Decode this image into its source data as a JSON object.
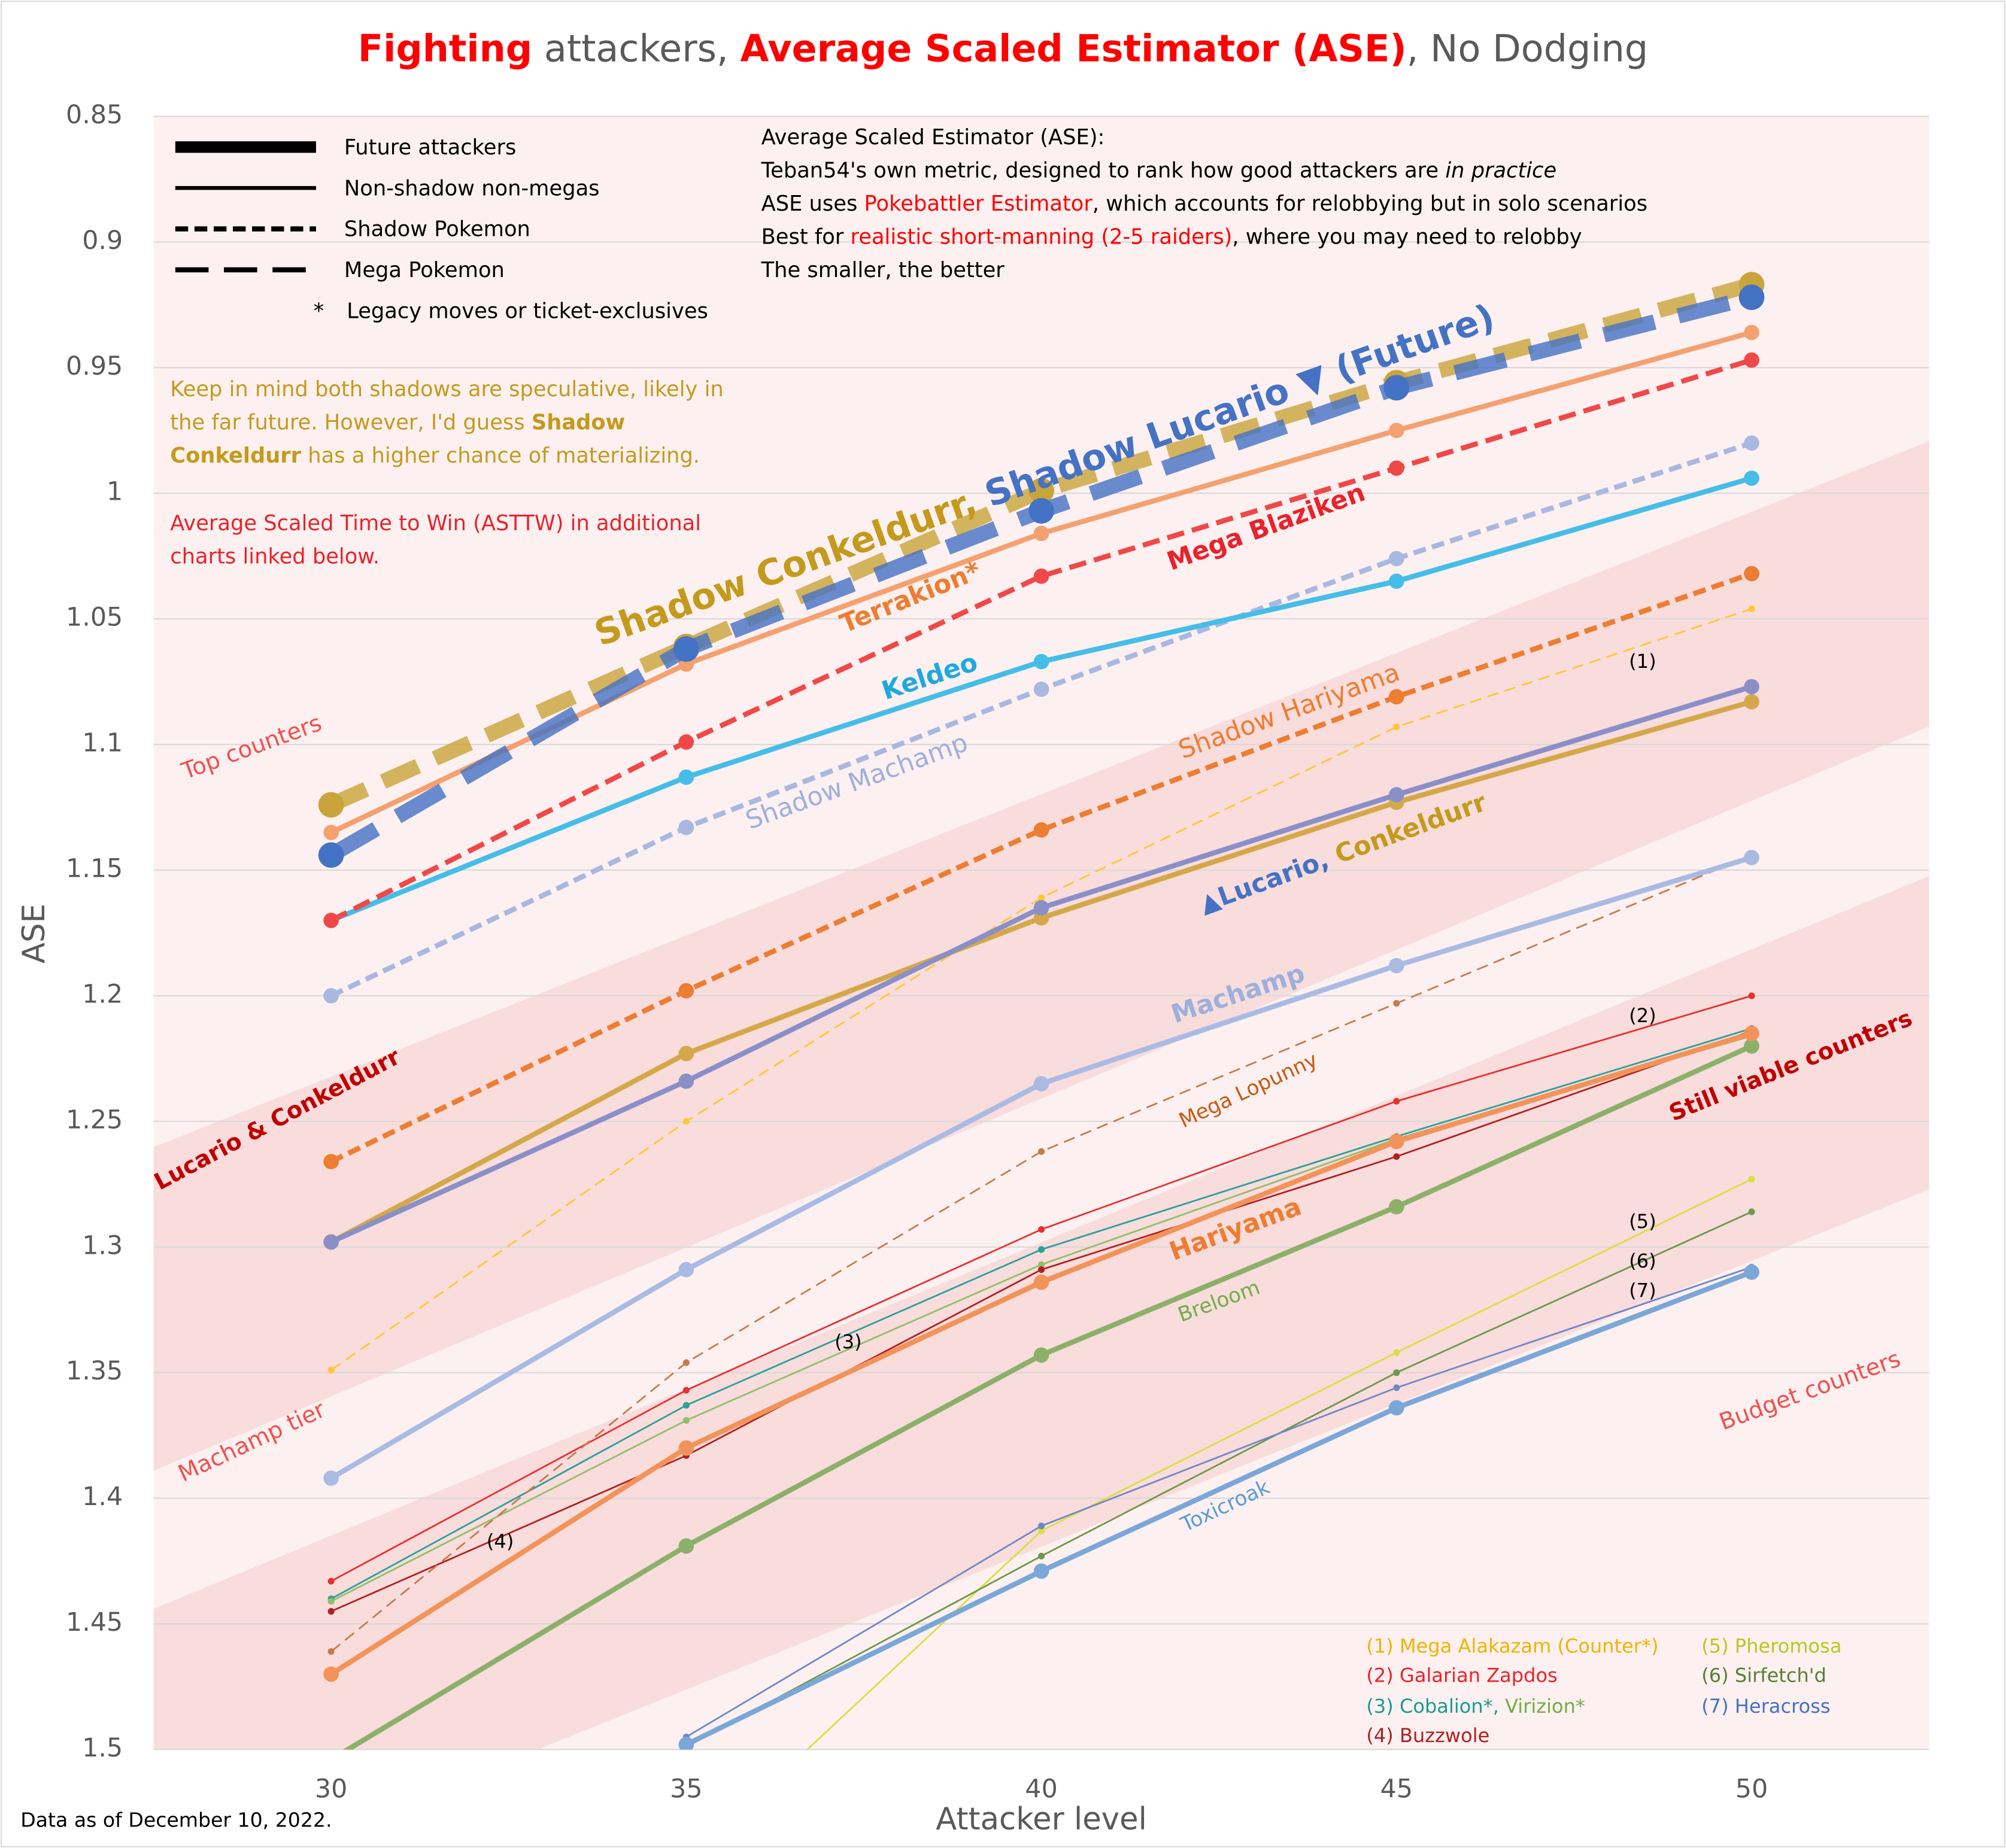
{
  "chart_data": {
    "type": "line",
    "title_parts": [
      "Fighting",
      "attackers,",
      "Average Scaled Estimator (ASE)",
      ", No Dodging"
    ],
    "xlabel": "Attacker level",
    "ylabel": "ASE",
    "x": [
      30,
      35,
      40,
      45,
      50
    ],
    "xlim": [
      27.5,
      52.5
    ],
    "xticks": [
      30,
      35,
      40,
      45,
      50
    ],
    "ylim": [
      0.85,
      1.5
    ],
    "y_inverted": true,
    "yticks": [
      0.85,
      0.9,
      0.95,
      1,
      1.05,
      1.1,
      1.15,
      1.2,
      1.25,
      1.3,
      1.35,
      1.4,
      1.45,
      1.5
    ],
    "grid": true,
    "series": [
      {
        "color": "#d8e040",
        "line": "solid",
        "weight": "minor",
        "values": [
          null,
          1.545,
          1.413,
          1.342,
          1.273
        ]
      },
      {
        "color": "#6a9a4a",
        "line": "solid",
        "weight": "minor",
        "values": [
          null,
          1.499,
          1.423,
          1.35,
          1.286
        ]
      },
      {
        "color": "#6f88c8",
        "line": "solid",
        "weight": "minor",
        "values": [
          null,
          1.495,
          1.411,
          1.356,
          1.308
        ]
      },
      {
        "color": "#7ba7d8",
        "line": "solid",
        "weight": "main",
        "values": [
          null,
          1.498,
          1.429,
          1.364,
          1.31
        ]
      },
      {
        "color": "#8cb06a",
        "line": "solid",
        "weight": "main",
        "values": [
          1.504,
          1.419,
          1.343,
          1.284,
          1.22
        ]
      },
      {
        "color": "#e83030",
        "line": "solid",
        "weight": "minor",
        "values": [
          1.433,
          1.357,
          1.293,
          1.242,
          1.2
        ]
      },
      {
        "color": "#2aa198",
        "line": "solid",
        "weight": "minor",
        "values": [
          1.44,
          1.363,
          1.301,
          1.256,
          1.213
        ]
      },
      {
        "color": "#8fbf6a",
        "line": "solid",
        "weight": "minor",
        "values": [
          1.441,
          1.369,
          1.307,
          1.257,
          1.216
        ]
      },
      {
        "color": "#b02020",
        "line": "solid",
        "weight": "minor",
        "values": [
          1.445,
          1.383,
          1.309,
          1.264,
          1.214
        ]
      },
      {
        "color": "#c87a4a",
        "line": "long-dashed",
        "weight": "minor",
        "values": [
          1.461,
          1.346,
          1.262,
          1.203,
          1.144
        ]
      },
      {
        "color": "#f2935a",
        "line": "solid",
        "weight": "main",
        "values": [
          1.47,
          1.38,
          1.314,
          1.258,
          1.215
        ]
      },
      {
        "color": "#ffc832",
        "line": "long-dashed",
        "weight": "minor",
        "values": [
          1.349,
          1.25,
          1.161,
          1.093,
          1.046
        ]
      },
      {
        "color": "#a9bbe3",
        "line": "solid",
        "weight": "main",
        "values": [
          1.392,
          1.309,
          1.235,
          1.188,
          1.145
        ]
      },
      {
        "color": "#d4a84a",
        "line": "solid",
        "weight": "main",
        "values": [
          1.298,
          1.223,
          1.169,
          1.123,
          1.083
        ]
      },
      {
        "color": "#8a8fc8",
        "line": "solid",
        "weight": "main",
        "values": [
          1.298,
          1.234,
          1.165,
          1.12,
          1.077
        ]
      },
      {
        "color": "#ed7d31",
        "line": "dashed",
        "weight": "main",
        "values": [
          1.266,
          1.198,
          1.134,
          1.081,
          1.032
        ]
      },
      {
        "color": "#a8b8e0",
        "line": "dashed",
        "weight": "main",
        "values": [
          1.2,
          1.133,
          1.078,
          1.026,
          0.98
        ]
      },
      {
        "color": "#45bde8",
        "line": "solid",
        "weight": "main",
        "values": [
          1.17,
          1.113,
          1.067,
          1.035,
          0.994
        ]
      },
      {
        "color": "#f04848",
        "line": "long-dashed",
        "weight": "main",
        "values": [
          1.17,
          1.099,
          1.033,
          0.99,
          0.947
        ]
      },
      {
        "color": "#f4a16f",
        "line": "solid",
        "weight": "main",
        "values": [
          1.135,
          1.068,
          1.016,
          0.975,
          0.936
        ]
      },
      {
        "color": "#c9a43a",
        "line": "dashed",
        "weight": "future",
        "values": [
          1.124,
          1.061,
          0.999,
          0.956,
          0.917
        ]
      },
      {
        "color": "#4472c4",
        "line": "long-dashed",
        "weight": "future",
        "values": [
          1.144,
          1.062,
          1.007,
          0.958,
          0.922
        ]
      }
    ],
    "annotations": [
      [
        {
          "text": "Shadow Conkeldurr,",
          "color": "#c49a1c"
        },
        {
          "text": "Shadow Lucario ▼ (Future)",
          "color": "#4472c4"
        }
      ],
      [
        {
          "text": "Terrakion*",
          "color": "#ed7d31"
        }
      ],
      [
        {
          "text": "Mega Blaziken",
          "color": "#e8232b"
        }
      ],
      [
        {
          "text": "Keldeo",
          "color": "#1fa8e0"
        }
      ],
      [
        {
          "text": "Shadow Machamp",
          "color": "#9db0dc"
        }
      ],
      [
        {
          "text": "Shadow Hariyama",
          "color": "#ed7d31"
        }
      ],
      [
        {
          "text": "▲Lucario,",
          "color": "#4472c4"
        },
        {
          "text": "Conkeldurr",
          "color": "#c49a1c"
        }
      ],
      [
        {
          "text": "Machamp",
          "color": "#9db0dc"
        }
      ],
      [
        {
          "text": "Mega Lopunny",
          "color": "#c55a11"
        }
      ],
      [
        {
          "text": "Hariyama",
          "color": "#ed7d31"
        }
      ],
      [
        {
          "text": "Breloom",
          "color": "#70ad47"
        }
      ],
      [
        {
          "text": "Toxicroak",
          "color": "#5b9bd5"
        }
      ],
      [
        {
          "text": "(1)",
          "color": "#000000"
        }
      ],
      [
        {
          "text": "(2)",
          "color": "#000000"
        }
      ],
      [
        {
          "text": "(3)",
          "color": "#000000"
        }
      ],
      [
        {
          "text": "(4)",
          "color": "#000000"
        }
      ],
      [
        {
          "text": "(5)",
          "color": "#000000"
        }
      ],
      [
        {
          "text": "(6)",
          "color": "#000000"
        }
      ],
      [
        {
          "text": "(7)",
          "color": "#000000"
        }
      ],
      [
        {
          "text": "Top counters",
          "color": "#f05050"
        }
      ],
      [
        {
          "text": "Lucario & Conkeldurr",
          "color": "#c00000"
        }
      ],
      [
        {
          "text": "Machamp tier",
          "color": "#f05050"
        }
      ],
      [
        {
          "text": "Still viable counters",
          "color": "#c00000"
        }
      ],
      [
        {
          "text": "Budget counters",
          "color": "#f05050"
        }
      ]
    ]
  },
  "legend_styles": [
    "Future attackers",
    "Non-shadow non-megas",
    "Shadow Pokemon",
    "Mega Pokemon",
    "*",
    "Legacy moves or ticket-exclusives"
  ],
  "info": [
    [
      "Average Scaled Estimator (ASE):"
    ],
    [
      "Teban54's own metric, designed to rank how good attackers are",
      "in practice"
    ],
    [
      "ASE uses",
      "Pokebattler Estimator",
      ", which accounts for relobbying but in solo scenarios"
    ],
    [
      "Best for",
      "realistic short-manning (2-5 raiders)",
      ", where you may need to relobby"
    ],
    [
      "The smaller, the better"
    ]
  ],
  "shadow_note": [
    [
      "Keep in mind both shadows are speculative, likely in"
    ],
    [
      "the far future. However, I'd guess",
      "Shadow"
    ],
    [
      "Conkeldurr",
      "has a higher chance of materializing."
    ]
  ],
  "asttw_note": [
    "Average Scaled Time to Win (ASTTW) in additional",
    "charts linked below."
  ],
  "footnote_key": [
    [
      "(1) Mega Alakazam (Counter*)"
    ],
    [
      "(2) Galarian Zapdos"
    ],
    [
      "(3) Cobalion*,",
      "Virizion*"
    ],
    [
      "(4) Buzzwole"
    ],
    [
      "(5) Pheromosa"
    ],
    [
      "(6) Sirfetch'd"
    ],
    [
      "(7) Heracross"
    ]
  ],
  "source": "Data as of December 10, 2022."
}
